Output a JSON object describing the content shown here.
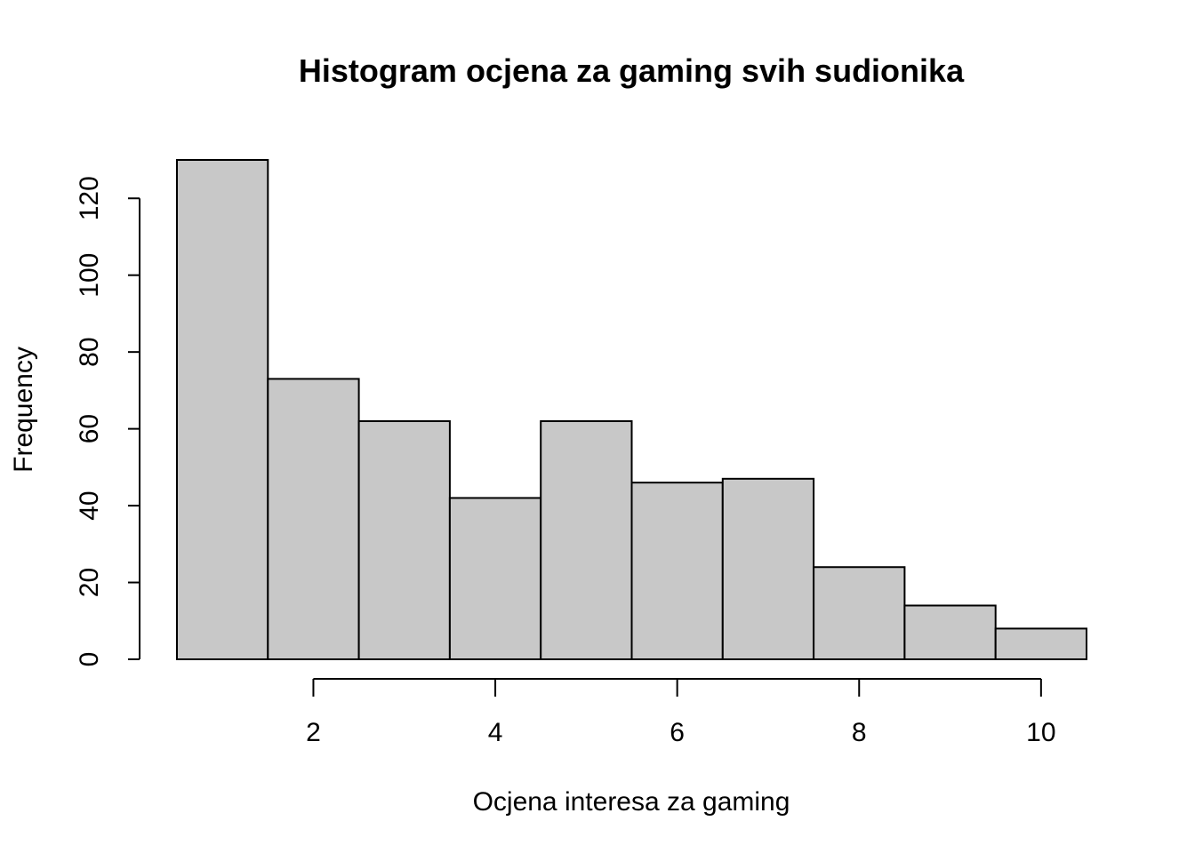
{
  "chart_data": {
    "type": "bar",
    "title": "Histogram ocjena za gaming svih sudionika",
    "xlabel": "Ocjena interesa za gaming",
    "ylabel": "Frequency",
    "bins": [
      {
        "from": 0.5,
        "to": 1.5,
        "value": 130
      },
      {
        "from": 1.5,
        "to": 2.5,
        "value": 73
      },
      {
        "from": 2.5,
        "to": 3.5,
        "value": 62
      },
      {
        "from": 3.5,
        "to": 4.5,
        "value": 42
      },
      {
        "from": 4.5,
        "to": 5.5,
        "value": 62
      },
      {
        "from": 5.5,
        "to": 6.5,
        "value": 46
      },
      {
        "from": 6.5,
        "to": 7.5,
        "value": 47
      },
      {
        "from": 7.5,
        "to": 8.5,
        "value": 24
      },
      {
        "from": 8.5,
        "to": 9.5,
        "value": 14
      },
      {
        "from": 9.5,
        "to": 10.5,
        "value": 8
      }
    ],
    "xlim": [
      0.5,
      10.5
    ],
    "ylim": [
      0,
      130
    ],
    "x_ticks": [
      2,
      4,
      6,
      8,
      10
    ],
    "y_ticks": [
      0,
      20,
      40,
      60,
      80,
      100,
      120
    ],
    "bar_color": "#c8c8c8",
    "grid": false,
    "legend": "none"
  }
}
